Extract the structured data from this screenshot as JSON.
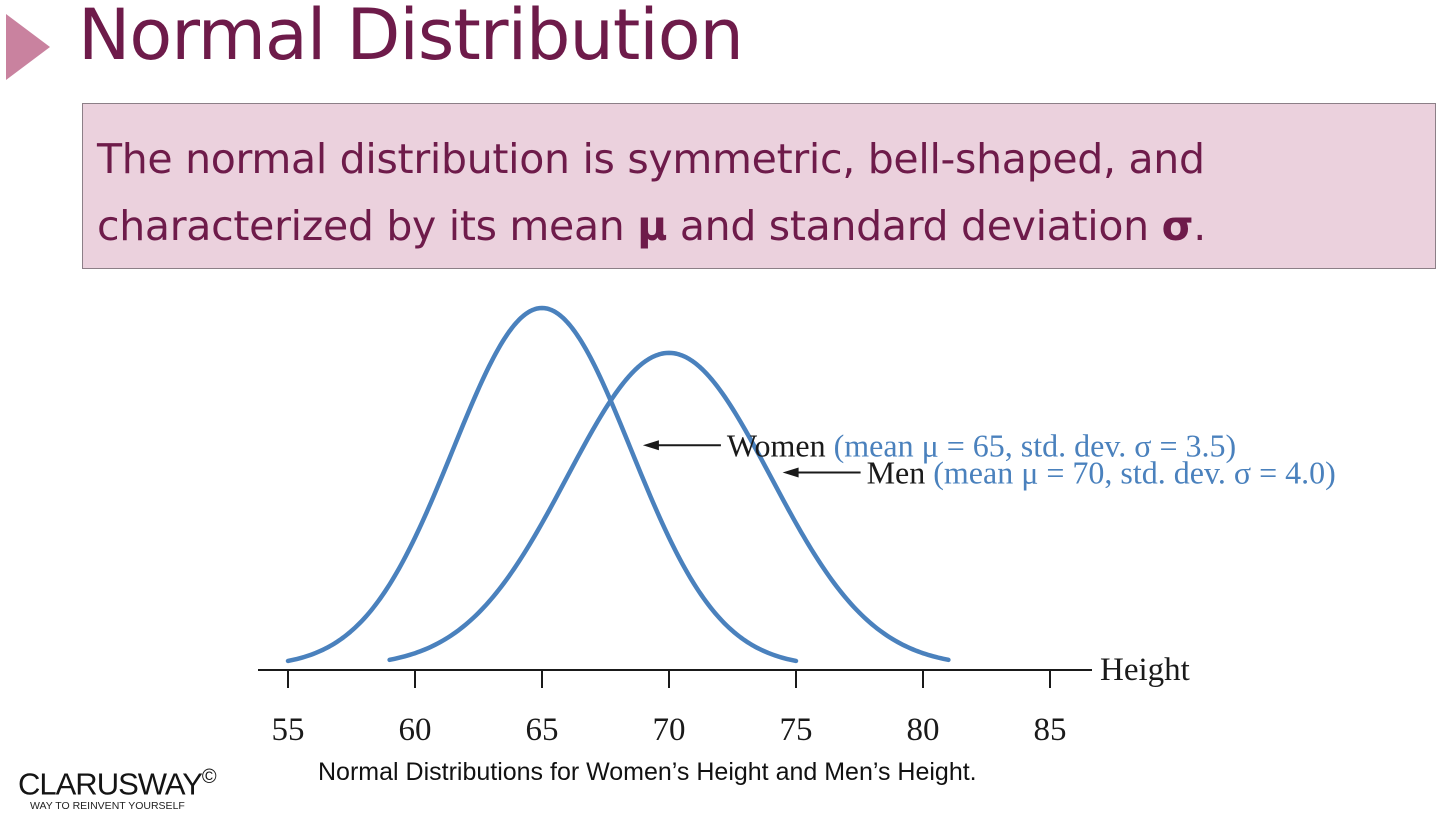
{
  "slide": {
    "title": "Normal Distribution",
    "callout": {
      "line1": "The normal distribution is symmetric, bell-shaped, and",
      "line2_pre": "characterized by its mean ",
      "line2_mu": "μ",
      "line2_mid": " and standard deviation ",
      "line2_sigma": "σ",
      "line2_end": "."
    },
    "caption": "Normal Distributions for Women’s Height and Men’s Height.",
    "logo": {
      "name": "CLARUSWAY",
      "mark": "©",
      "tagline": "WAY TO REINVENT YOURSELF"
    }
  },
  "chart_data": {
    "type": "line",
    "title": "",
    "xlabel": "Height",
    "ylabel": "",
    "xlim": [
      55,
      85
    ],
    "x_ticks": [
      55,
      60,
      65,
      70,
      75,
      80,
      85
    ],
    "grid": false,
    "curve_color": "#4a81bd",
    "series": [
      {
        "name": "Women",
        "label_detail": "(mean μ = 65, std. dev. σ = 3.5)",
        "mean": 65,
        "std": 3.5,
        "x_range": [
          55,
          75
        ]
      },
      {
        "name": "Men",
        "label_detail": "(mean μ = 70, std. dev. σ = 4.0)",
        "mean": 70,
        "std": 4.0,
        "x_range": [
          59,
          81
        ]
      }
    ]
  }
}
